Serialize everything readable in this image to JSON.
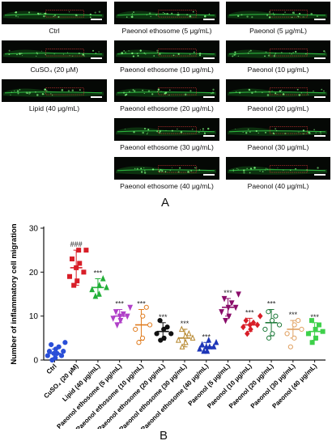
{
  "figure": {
    "panel_a_label": "A",
    "panel_b_label": "B",
    "images": [
      {
        "key": "ctrl",
        "caption": "Ctrl"
      },
      {
        "key": "cuso4",
        "caption": "CuSO₄ (20 μM)"
      },
      {
        "key": "lipid",
        "caption": "Lipid (40 μg/mL)"
      },
      {
        "key": "pe5",
        "caption": "Paeonol ethosome (5 μg/mL)"
      },
      {
        "key": "pe10",
        "caption": "Paeonol ethosome (10 μg/mL)"
      },
      {
        "key": "pe20",
        "caption": "Paeonol ethosome (20 μg/mL)"
      },
      {
        "key": "pe30",
        "caption": "Paeonol ethosome (30 μg/mL)"
      },
      {
        "key": "pe40",
        "caption": "Paeonol ethosome (40 μg/mL)"
      },
      {
        "key": "p5",
        "caption": "Paeonol (5 μg/mL)"
      },
      {
        "key": "p10",
        "caption": "Paeonol (10 μg/mL)"
      },
      {
        "key": "p20",
        "caption": "Paeonol (20 μg/mL)"
      },
      {
        "key": "p30",
        "caption": "Paeonol (30 μg/mL)"
      },
      {
        "key": "p40",
        "caption": "Paeonol (40 μg/mL)"
      }
    ]
  },
  "chart_data": {
    "type": "scatter",
    "ylabel": "Number of inflammatory cell migration",
    "ylim": [
      0,
      30
    ],
    "yticks": [
      0,
      10,
      20,
      30
    ],
    "categories": [
      "Ctrl",
      "CuSO₄ (20 μM)",
      "Lipid (40 μg/mL)",
      "Paeonol ethosome (5 μg/mL)",
      "Paeonol ethosome (10 μg/mL)",
      "Paeonol ethosome (20 μg/mL)",
      "Paeonol ethosome (30 μg/mL)",
      "Paeonol ethosome (40 μg/mL)",
      "Paeonol (5 μg/mL)",
      "Paeonol (10 μg/mL)",
      "Paeonol (20 μg/mL)",
      "Paeonol (30 μg/mL)",
      "Paeonol (40 μg/mL)"
    ],
    "groups": [
      {
        "color": "#2a4fd8",
        "marker": "circle",
        "mean": 1.5,
        "sd": 1.0,
        "label": "",
        "points": [
          0,
          0.5,
          1,
          1,
          1.5,
          1.5,
          2,
          2,
          2.5,
          3,
          3.5,
          4
        ]
      },
      {
        "color": "#d81e28",
        "marker": "square",
        "mean": 21,
        "sd": 4.0,
        "label": "###",
        "points": [
          17,
          18,
          19,
          20,
          21,
          22,
          23,
          25,
          25
        ]
      },
      {
        "color": "#22b038",
        "marker": "triangle-up",
        "mean": 16.5,
        "sd": 2.0,
        "label": "***",
        "points": [
          14.5,
          15,
          16,
          16.5,
          17,
          18.5
        ]
      },
      {
        "color": "#b040c8",
        "marker": "triangle-down",
        "mean": 10,
        "sd": 1.5,
        "label": "***",
        "points": [
          8,
          9,
          9.5,
          10,
          10,
          10.5,
          11,
          12
        ]
      },
      {
        "color": "#e07c1e",
        "marker": "circle-open",
        "mean": 8,
        "sd": 3.5,
        "label": "***",
        "points": [
          4,
          5,
          7,
          8,
          10,
          12
        ]
      },
      {
        "color": "#111111",
        "marker": "circle",
        "mean": 6.5,
        "sd": 2.0,
        "label": "***",
        "points": [
          4.5,
          5,
          6,
          6,
          7,
          7.5,
          9
        ]
      },
      {
        "color": "#b5852a",
        "marker": "triangle-up-open",
        "mean": 5,
        "sd": 2.0,
        "label": "***",
        "points": [
          3,
          4,
          4.5,
          5,
          5.5,
          6,
          7
        ]
      },
      {
        "color": "#1e36b8",
        "marker": "triangle-up",
        "mean": 3,
        "sd": 1.0,
        "label": "***",
        "points": [
          2,
          2,
          2.5,
          3,
          3,
          3,
          3.5,
          4,
          4.5
        ]
      },
      {
        "color": "#8a0d6a",
        "marker": "triangle-down",
        "mean": 12,
        "sd": 2.0,
        "label": "***",
        "points": [
          9,
          10,
          11,
          12,
          12,
          13,
          14,
          15
        ]
      },
      {
        "color": "#d81e28",
        "marker": "diamond",
        "mean": 8,
        "sd": 1.5,
        "label": "***",
        "points": [
          6,
          7,
          7.5,
          8,
          8,
          8.5,
          9,
          10
        ]
      },
      {
        "color": "#1e7a3a",
        "marker": "circle-open",
        "mean": 8.5,
        "sd": 3.0,
        "label": "***",
        "points": [
          5,
          6,
          7,
          8,
          9,
          10,
          11
        ]
      },
      {
        "color": "#e0a060",
        "marker": "circle-open",
        "mean": 7,
        "sd": 2.0,
        "label": "***",
        "points": [
          3,
          5,
          6,
          7,
          8,
          9
        ]
      },
      {
        "color": "#3ed04a",
        "marker": "square",
        "mean": 6.5,
        "sd": 2.0,
        "label": "***",
        "points": [
          4,
          5,
          6,
          6.5,
          7,
          8,
          9
        ]
      }
    ]
  }
}
